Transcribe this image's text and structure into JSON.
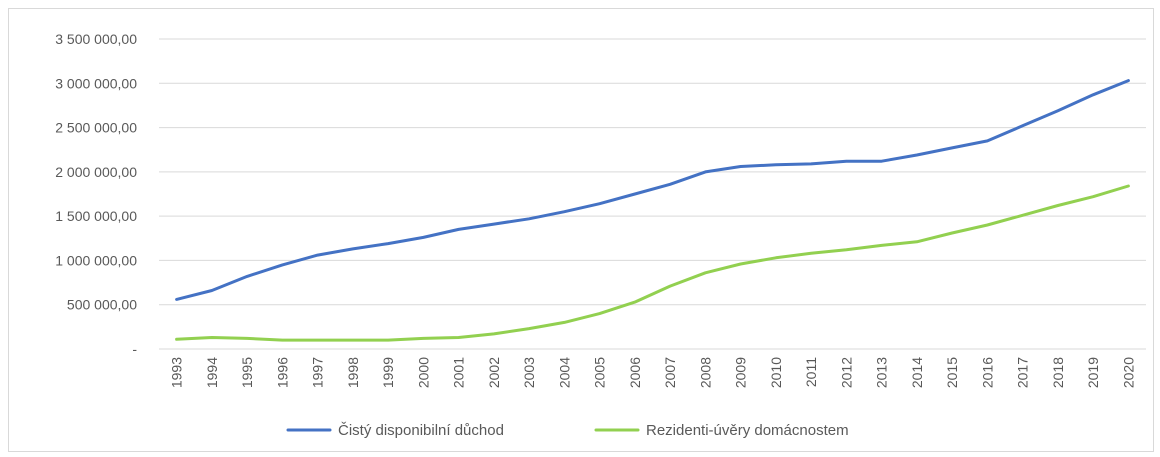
{
  "chart_data": {
    "type": "line",
    "title": "",
    "xlabel": "",
    "ylabel": "",
    "ylim": [
      0,
      3500000
    ],
    "y_ticks": [
      {
        "value": 0,
        "label": "-"
      },
      {
        "value": 500000,
        "label": "500 000,00"
      },
      {
        "value": 1000000,
        "label": "1 000 000,00"
      },
      {
        "value": 1500000,
        "label": "1 500 000,00"
      },
      {
        "value": 2000000,
        "label": "2 000 000,00"
      },
      {
        "value": 2500000,
        "label": "2 500 000,00"
      },
      {
        "value": 3000000,
        "label": "3 000 000,00"
      },
      {
        "value": 3500000,
        "label": "3 500 000,00"
      }
    ],
    "grid": true,
    "legend_position": "bottom",
    "categories": [
      "1993",
      "1994",
      "1995",
      "1996",
      "1997",
      "1998",
      "1999",
      "2000",
      "2001",
      "2002",
      "2003",
      "2004",
      "2005",
      "2006",
      "2007",
      "2008",
      "2009",
      "2010",
      "2011",
      "2012",
      "2013",
      "2014",
      "2015",
      "2016",
      "2017",
      "2018",
      "2019",
      "2020"
    ],
    "series": [
      {
        "name": "Čistý disponibilní důchod",
        "color": "#4472c4",
        "values": [
          560000,
          660000,
          820000,
          950000,
          1060000,
          1130000,
          1190000,
          1260000,
          1350000,
          1410000,
          1470000,
          1550000,
          1640000,
          1750000,
          1860000,
          2000000,
          2060000,
          2080000,
          2090000,
          2120000,
          2120000,
          2190000,
          2270000,
          2350000,
          2520000,
          2690000,
          2870000,
          3030000
        ]
      },
      {
        "name": "Rezidenti-úvěry domácnostem",
        "color": "#92d050",
        "values": [
          110000,
          130000,
          120000,
          100000,
          100000,
          100000,
          100000,
          120000,
          130000,
          170000,
          230000,
          300000,
          400000,
          530000,
          710000,
          860000,
          960000,
          1030000,
          1080000,
          1120000,
          1170000,
          1210000,
          1310000,
          1400000,
          1510000,
          1620000,
          1720000,
          1840000
        ]
      }
    ]
  }
}
